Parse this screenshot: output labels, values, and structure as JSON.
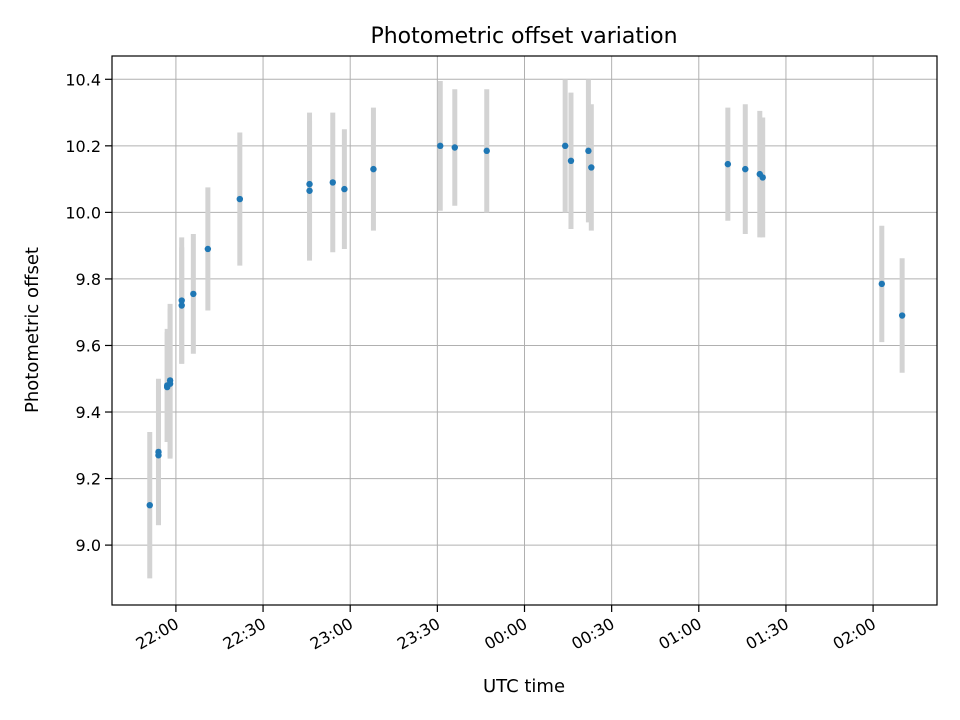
{
  "chart_data": {
    "type": "scatter",
    "title": "Photometric offset variation",
    "xlabel": "UTC time",
    "ylabel": "Photometric offset",
    "grid": true,
    "xlim": [
      "21:38",
      "02:22"
    ],
    "ylim": [
      8.82,
      10.47
    ],
    "xticks": [
      "22:00",
      "22:30",
      "23:00",
      "23:30",
      "00:00",
      "00:30",
      "01:00",
      "01:30",
      "02:00"
    ],
    "yticks": [
      "9.0",
      "9.2",
      "9.4",
      "9.6",
      "9.8",
      "10.0",
      "10.2",
      "10.4"
    ],
    "points": [
      {
        "t": "21:51",
        "y": 9.12,
        "err": 0.22
      },
      {
        "t": "21:54",
        "y": 9.28,
        "err": 0.22
      },
      {
        "t": "21:54",
        "y": 9.27,
        "err": 0.21
      },
      {
        "t": "21:57",
        "y": 9.475,
        "err": 0.165
      },
      {
        "t": "21:57",
        "y": 9.48,
        "err": 0.17
      },
      {
        "t": "21:58",
        "y": 9.495,
        "err": 0.23
      },
      {
        "t": "21:58",
        "y": 9.485,
        "err": 0.225
      },
      {
        "t": "22:02",
        "y": 9.72,
        "err": 0.175
      },
      {
        "t": "22:02",
        "y": 9.735,
        "err": 0.19
      },
      {
        "t": "22:06",
        "y": 9.755,
        "err": 0.18
      },
      {
        "t": "22:11",
        "y": 9.89,
        "err": 0.185
      },
      {
        "t": "22:22",
        "y": 10.04,
        "err": 0.2
      },
      {
        "t": "22:46",
        "y": 10.065,
        "err": 0.21
      },
      {
        "t": "22:46",
        "y": 10.085,
        "err": 0.215
      },
      {
        "t": "22:54",
        "y": 10.09,
        "err": 0.21
      },
      {
        "t": "22:58",
        "y": 10.07,
        "err": 0.18
      },
      {
        "t": "23:08",
        "y": 10.13,
        "err": 0.185
      },
      {
        "t": "23:31",
        "y": 10.2,
        "err": 0.195
      },
      {
        "t": "23:36",
        "y": 10.195,
        "err": 0.175
      },
      {
        "t": "23:47",
        "y": 10.185,
        "err": 0.185
      },
      {
        "t": "00:14",
        "y": 10.2,
        "err": 0.2
      },
      {
        "t": "00:16",
        "y": 10.155,
        "err": 0.205
      },
      {
        "t": "00:22",
        "y": 10.185,
        "err": 0.215
      },
      {
        "t": "00:23",
        "y": 10.135,
        "err": 0.19
      },
      {
        "t": "01:10",
        "y": 10.145,
        "err": 0.17
      },
      {
        "t": "01:16",
        "y": 10.13,
        "err": 0.195
      },
      {
        "t": "01:21",
        "y": 10.115,
        "err": 0.19
      },
      {
        "t": "01:22",
        "y": 10.105,
        "err": 0.18
      },
      {
        "t": "02:03",
        "y": 9.785,
        "err": 0.175
      },
      {
        "t": "02:10",
        "y": 9.69,
        "err": 0.172
      }
    ],
    "colors": {
      "marker": "#1f77b4",
      "errorbar": "#d3d3d3",
      "grid": "#b0b0b0",
      "axes": "#000000"
    }
  }
}
